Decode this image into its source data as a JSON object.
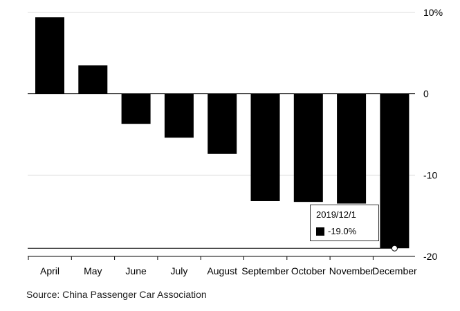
{
  "chart_data": {
    "type": "bar",
    "categories": [
      "April",
      "May",
      "June",
      "July",
      "August",
      "September",
      "October",
      "November",
      "December"
    ],
    "values": [
      9.4,
      3.5,
      -3.7,
      -5.4,
      -7.4,
      -13.2,
      -13.3,
      -13.5,
      -19.0
    ],
    "ylim": [
      -20,
      10
    ],
    "yticks": [
      10,
      0,
      -10,
      -20
    ],
    "ytick_labels": [
      "10%",
      "0",
      "-10",
      "-20"
    ],
    "bar_color": "#000000",
    "grid": true,
    "axis_side": "right"
  },
  "tooltip": {
    "date": "2019/12/1",
    "value": "-19.0%",
    "swatch_color": "#000000"
  },
  "source": "Source: China Passenger Car Association"
}
